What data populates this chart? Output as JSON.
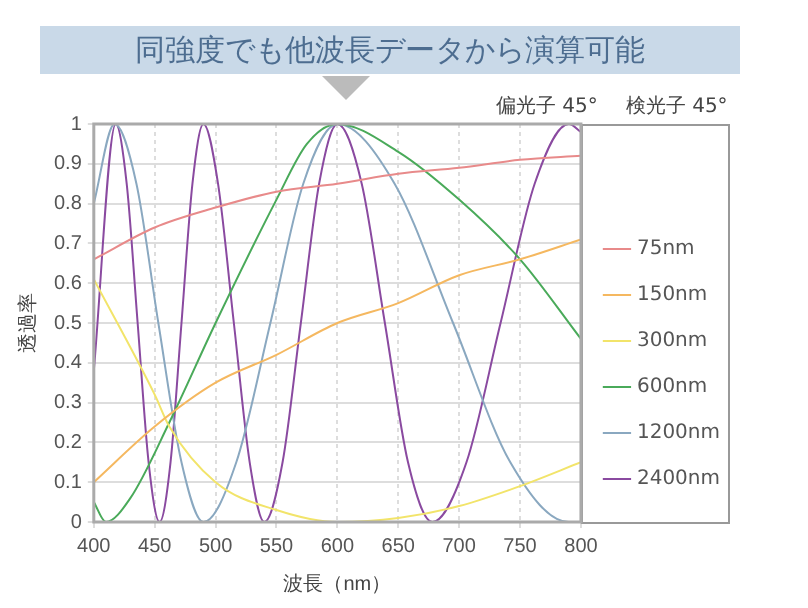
{
  "chart_data": {
    "type": "line",
    "title": "同強度でも他波長データから演算可能",
    "xlabel": "波長（nm）",
    "ylabel": "透過率",
    "annotations": [
      "偏光子 45°",
      "検光子 45°"
    ],
    "xlim": [
      400,
      800
    ],
    "xticks": [
      400,
      450,
      500,
      550,
      600,
      650,
      700,
      750,
      800
    ],
    "ylim": [
      0,
      1
    ],
    "yticks": [
      0,
      0.1,
      0.2,
      0.3,
      0.4,
      0.5,
      0.6,
      0.7,
      0.8,
      0.9,
      1
    ],
    "grid": true,
    "legend": "right",
    "marker": "none",
    "line_style": "solid",
    "series": [
      {
        "name": "75nm",
        "color": "#e88a8a",
        "x": [
          400,
          450,
          500,
          550,
          600,
          650,
          700,
          750,
          800
        ],
        "values": [
          0.66,
          0.74,
          0.79,
          0.83,
          0.85,
          0.875,
          0.89,
          0.91,
          0.92
        ]
      },
      {
        "name": "150nm",
        "color": "#f5b860",
        "x": [
          400,
          450,
          500,
          550,
          600,
          650,
          700,
          750,
          800
        ],
        "values": [
          0.1,
          0.24,
          0.35,
          0.42,
          0.5,
          0.55,
          0.62,
          0.66,
          0.71
        ]
      },
      {
        "name": "300nm",
        "color": "#f2e46a",
        "x": [
          400,
          450,
          462,
          500,
          550,
          600,
          650,
          700,
          750,
          800
        ],
        "values": [
          0.61,
          0.32,
          0.24,
          0.1,
          0.03,
          0,
          0.01,
          0.04,
          0.09,
          0.15
        ]
      },
      {
        "name": "600nm",
        "color": "#4aaa5a",
        "x": [
          400,
          410,
          430,
          462,
          500,
          550,
          575,
          600,
          650,
          700,
          750,
          800
        ],
        "values": [
          0.05,
          0,
          0.06,
          0.25,
          0.5,
          0.81,
          0.95,
          1,
          0.93,
          0.81,
          0.66,
          0.46
        ]
      },
      {
        "name": "1200nm",
        "color": "#8aa8c0",
        "x": [
          400,
          417,
          435,
          453,
          472,
          490,
          517,
          545,
          572,
          600,
          647,
          695,
          742,
          790,
          800
        ],
        "values": [
          0.8,
          1,
          0.85,
          0.5,
          0.15,
          0,
          0.15,
          0.5,
          0.85,
          1,
          0.85,
          0.5,
          0.15,
          0,
          0
        ]
      },
      {
        "name": "2400nm",
        "color": "#8a4aa0",
        "x": [
          400,
          418,
          427,
          436,
          445,
          454,
          463,
          472,
          481,
          490,
          502,
          515,
          528,
          540,
          555,
          570,
          585,
          600,
          620,
          639,
          658,
          678,
          706,
          734,
          762,
          790,
          800
        ],
        "values": [
          0.38,
          1,
          0.85,
          0.5,
          0.15,
          0,
          0.15,
          0.5,
          0.85,
          1,
          0.85,
          0.5,
          0.15,
          0,
          0.15,
          0.5,
          0.85,
          1,
          0.85,
          0.5,
          0.15,
          0,
          0.15,
          0.5,
          0.85,
          1,
          0.98
        ]
      }
    ]
  }
}
